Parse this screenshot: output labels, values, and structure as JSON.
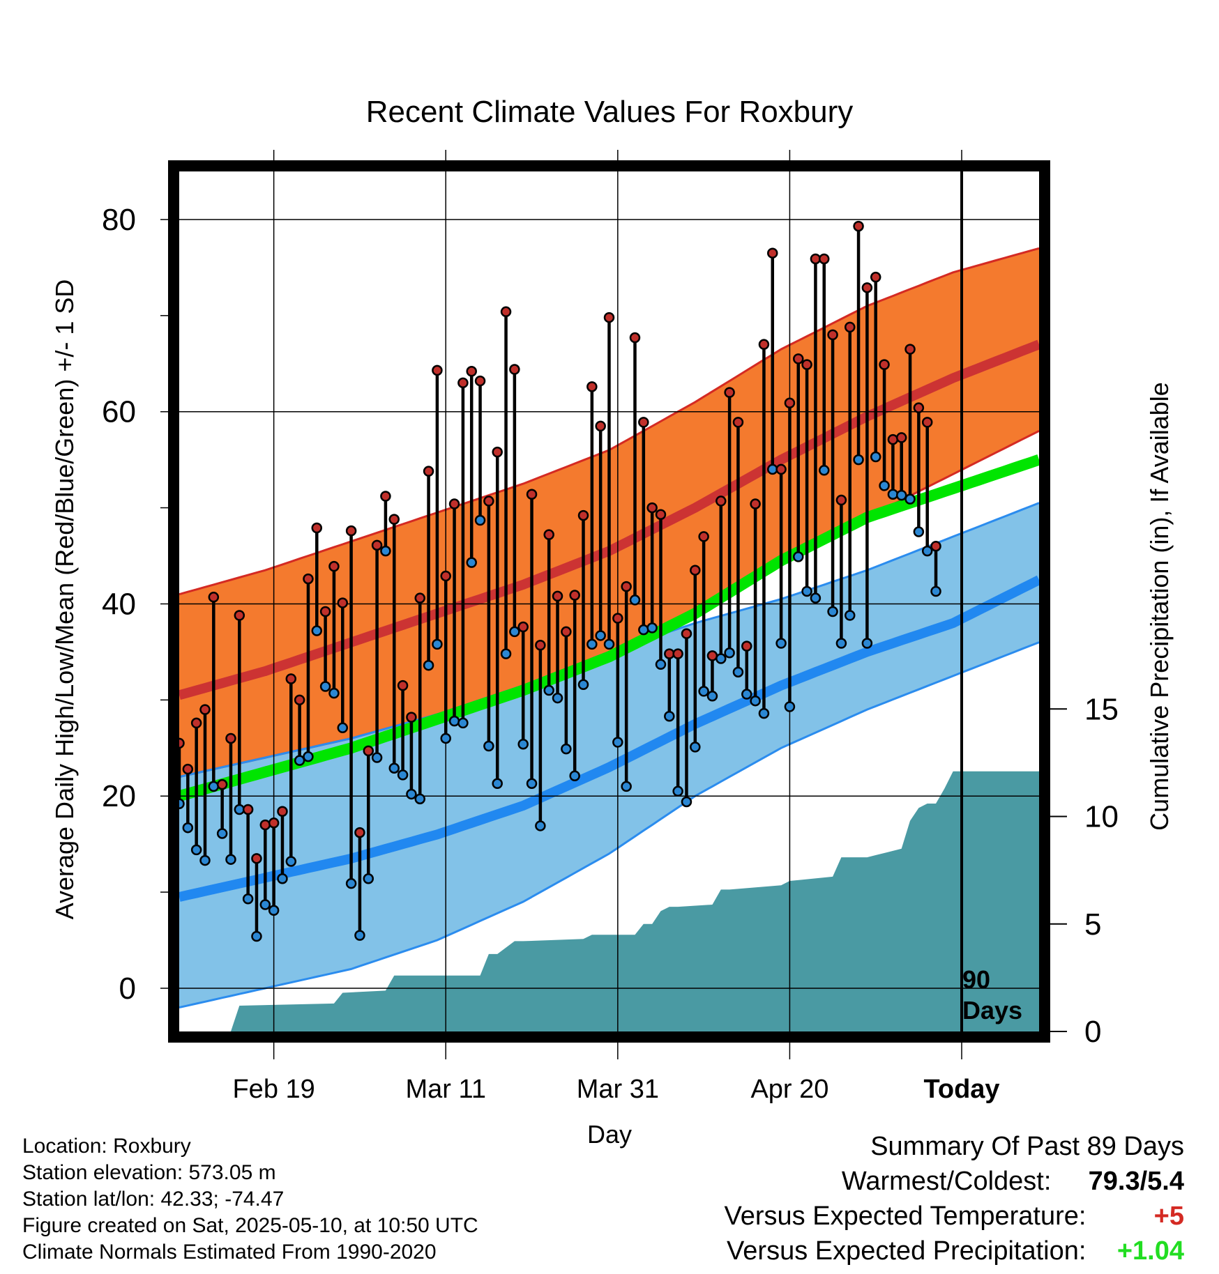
{
  "chart_data": {
    "type": "line",
    "title": "Recent Climate Values For Roxbury",
    "xlabel": "Day",
    "ylabel": "Average Daily High/Low/Mean (Red/Blue/Green) +/- 1 SD",
    "y2label": "Cumulative Precipitation (in), If Available",
    "ylim": [
      -4.5,
      85
    ],
    "y2lim": [
      0,
      40
    ],
    "x_ticks": [
      "Feb 19",
      "Mar 11",
      "Mar 31",
      "Apr 20",
      "Today"
    ],
    "x_tick_days": [
      11,
      31,
      51,
      71,
      91
    ],
    "y_ticks": [
      "0",
      "20",
      "40",
      "60",
      "80"
    ],
    "y_tick_values": [
      0,
      20,
      40,
      60,
      80
    ],
    "y2_ticks": [
      "0",
      "5",
      "10",
      "15"
    ],
    "y2_tick_values": [
      0,
      5,
      10,
      15
    ],
    "annotation": {
      "line1": "90",
      "line2": "Days",
      "day": 91
    },
    "grid": true,
    "colors": {
      "high_band": "#f47a2e",
      "high_band_edge": "#d42a23",
      "high_mean": "#cc3333",
      "low_band": "#82c2e8",
      "low_band_edge": "#2b8cee",
      "low_mean": "#2188f0",
      "mean_temp": "#00e500",
      "precip": "#4a9aa3",
      "high_marker": "#c0302b",
      "low_marker": "#2b87d3"
    },
    "normals": {
      "days": [
        0,
        10,
        20,
        30,
        40,
        50,
        60,
        70,
        80,
        90,
        100
      ],
      "high_mean": [
        30.5,
        33.0,
        36.0,
        39.0,
        42.0,
        45.5,
        50.0,
        55.0,
        59.5,
        63.5,
        67.0
      ],
      "high_upper": [
        41.0,
        43.5,
        46.5,
        49.5,
        52.5,
        56.0,
        61.0,
        66.5,
        71.0,
        74.5,
        77.0
      ],
      "high_lower": [
        22.0,
        24.0,
        26.0,
        28.5,
        31.5,
        35.0,
        39.5,
        44.5,
        49.0,
        53.5,
        58.0
      ],
      "low_mean": [
        9.5,
        11.5,
        13.5,
        16.0,
        19.0,
        23.0,
        27.5,
        31.5,
        35.0,
        38.0,
        42.5
      ],
      "low_upper": [
        22.0,
        24.0,
        26.0,
        28.5,
        31.5,
        35.0,
        38.0,
        40.5,
        43.5,
        47.0,
        50.5
      ],
      "low_lower": [
        -2.0,
        0.0,
        2.0,
        5.0,
        9.0,
        14.0,
        20.0,
        25.0,
        29.0,
        32.5,
        36.0
      ],
      "mean": [
        20.0,
        22.5,
        25.0,
        28.0,
        31.0,
        34.5,
        39.0,
        44.5,
        49.0,
        52.0,
        55.0
      ]
    },
    "daily": {
      "start_day": 0,
      "high": [
        25.5,
        22.8,
        27.6,
        29.0,
        40.7,
        21.2,
        26.0,
        38.8,
        18.6,
        13.5,
        17.0,
        17.2,
        18.4,
        32.2,
        30.0,
        42.6,
        47.9,
        39.2,
        43.9,
        40.1,
        47.6,
        16.2,
        24.7,
        46.1,
        51.2,
        48.8,
        31.5,
        28.2,
        40.6,
        53.8,
        64.3,
        42.9,
        50.4,
        63.0,
        64.2,
        63.2,
        50.7,
        55.8,
        70.4,
        64.4,
        37.6,
        51.4,
        35.7,
        47.2,
        40.8,
        37.1,
        40.9,
        49.2,
        62.6,
        58.5,
        69.8,
        38.5,
        41.8,
        67.7,
        58.9,
        50.0,
        49.3,
        34.8,
        34.8,
        36.9,
        43.5,
        47.0,
        34.6,
        50.7,
        62.0,
        58.9,
        35.6,
        50.4,
        67.0,
        76.5,
        54.0,
        60.9,
        65.5,
        64.9,
        75.9,
        75.9,
        68.0,
        50.8,
        68.8,
        79.3,
        72.9,
        74.0,
        64.9,
        57.1,
        57.3,
        66.5,
        60.4,
        58.9,
        46.0
      ],
      "low": [
        19.2,
        16.7,
        14.4,
        13.3,
        21.0,
        16.1,
        13.4,
        18.6,
        9.3,
        5.4,
        8.7,
        8.1,
        11.4,
        13.2,
        23.7,
        24.1,
        37.2,
        31.4,
        30.7,
        27.1,
        10.9,
        5.5,
        11.4,
        24.0,
        45.5,
        22.9,
        22.2,
        20.2,
        19.7,
        33.6,
        35.8,
        26.0,
        27.8,
        27.6,
        44.3,
        48.7,
        25.2,
        21.3,
        34.8,
        37.1,
        25.4,
        21.3,
        16.9,
        31.0,
        30.2,
        24.9,
        22.1,
        31.6,
        35.8,
        36.7,
        35.8,
        25.6,
        21.0,
        40.4,
        37.3,
        37.5,
        33.7,
        28.3,
        20.5,
        19.4,
        25.1,
        30.9,
        30.4,
        34.3,
        34.9,
        32.9,
        30.6,
        29.9,
        28.6,
        54.0,
        35.9,
        29.3,
        44.9,
        41.3,
        40.6,
        53.9,
        39.2,
        35.9,
        38.8,
        55.0,
        35.9,
        55.3,
        52.3,
        51.4,
        51.3,
        50.9,
        47.5,
        45.5,
        41.3
      ]
    },
    "precip": {
      "days": [
        0,
        6,
        7,
        18,
        19,
        24,
        25,
        35,
        36,
        37,
        39,
        40,
        47,
        48,
        53,
        54,
        55,
        56,
        57,
        58,
        62,
        63,
        64,
        70,
        71,
        76,
        77,
        80,
        81,
        84,
        85,
        86,
        87,
        88,
        89,
        90,
        91,
        100
      ],
      "values": [
        0,
        0,
        1.2,
        1.3,
        1.8,
        1.9,
        2.6,
        2.6,
        3.6,
        3.6,
        4.2,
        4.2,
        4.3,
        4.5,
        4.5,
        5.0,
        5.0,
        5.6,
        5.8,
        5.8,
        5.9,
        6.6,
        6.6,
        6.8,
        7.0,
        7.2,
        8.1,
        8.1,
        8.2,
        8.5,
        9.8,
        10.4,
        10.6,
        10.6,
        11.3,
        12.1,
        12.1,
        12.1
      ]
    }
  },
  "info": {
    "location": "Location: Roxbury",
    "elevation": "Station elevation: 573.05 m",
    "latlon": "Station lat/lon: 42.33; -74.47",
    "created": "Figure created on Sat, 2025-05-10, at 10:50 UTC",
    "normals": "Climate Normals Estimated From 1990-2020"
  },
  "summary": {
    "title": "Summary Of Past 89 Days",
    "warm_cold_label": "Warmest/Coldest:",
    "warm_cold_value": "79.3/5.4",
    "temp_label": "Versus Expected Temperature:",
    "temp_value": "+5",
    "temp_color": "#d42a23",
    "precip_label": "Versus Expected Precipitation:",
    "precip_value": "+1.04",
    "precip_color": "#22dd22"
  }
}
